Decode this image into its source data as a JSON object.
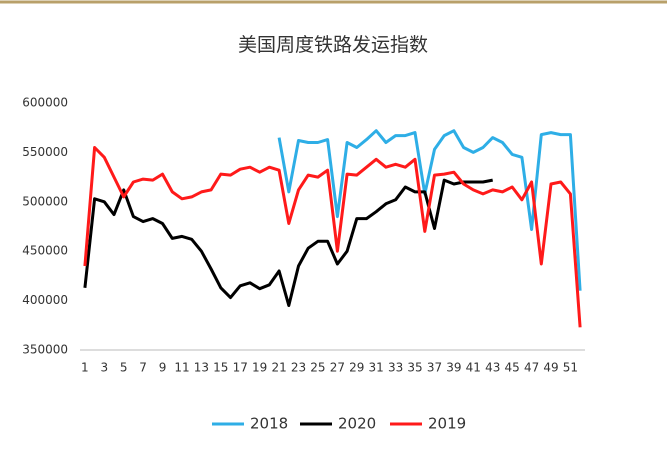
{
  "chart_data": {
    "type": "line",
    "title": "美国周度铁路发运指数",
    "categories": [
      1,
      null,
      3,
      null,
      5,
      null,
      7,
      null,
      9,
      null,
      11,
      null,
      13,
      null,
      15,
      null,
      17,
      null,
      19,
      null,
      21,
      null,
      23,
      null,
      25,
      null,
      27,
      null,
      29,
      null,
      31,
      null,
      33,
      null,
      35,
      null,
      37,
      null,
      39,
      null,
      41,
      null,
      43,
      null,
      45,
      null,
      47,
      null,
      49,
      null,
      51,
      null
    ],
    "ylim": [
      350000,
      600000
    ],
    "yticks": [
      350000,
      400000,
      450000,
      500000,
      550000,
      600000
    ],
    "grid": false,
    "legend": "bottom",
    "series": [
      {
        "name": "2018",
        "color": "#2eaee6",
        "values": [
          null,
          null,
          null,
          null,
          null,
          null,
          null,
          null,
          null,
          null,
          null,
          null,
          null,
          null,
          null,
          null,
          null,
          null,
          null,
          null,
          565000,
          510000,
          562000,
          560000,
          560000,
          563000,
          485000,
          560000,
          555000,
          563000,
          572000,
          560000,
          567000,
          567000,
          570000,
          508000,
          553000,
          567000,
          572000,
          555000,
          550000,
          555000,
          565000,
          560000,
          548000,
          545000,
          472000,
          568000,
          570000,
          568000,
          568000,
          410000
        ]
      },
      {
        "name": "2020",
        "color": "#000000",
        "values": [
          413000,
          503000,
          500000,
          487000,
          512000,
          485000,
          480000,
          483000,
          478000,
          463000,
          465000,
          462000,
          450000,
          432000,
          413000,
          403000,
          415000,
          418000,
          412000,
          416000,
          430000,
          395000,
          435000,
          453000,
          460000,
          460000,
          437000,
          450000,
          483000,
          483000,
          490000,
          498000,
          502000,
          515000,
          510000,
          510000,
          473000,
          522000,
          518000,
          520000,
          520000,
          520000,
          522000,
          null,
          null,
          null,
          null,
          null,
          null,
          null,
          null,
          null
        ]
      },
      {
        "name": "2019",
        "color": "#ff1a1a",
        "values": [
          435000,
          555000,
          545000,
          525000,
          505000,
          520000,
          523000,
          522000,
          528000,
          510000,
          503000,
          505000,
          510000,
          512000,
          528000,
          527000,
          533000,
          535000,
          530000,
          535000,
          532000,
          478000,
          512000,
          527000,
          525000,
          532000,
          450000,
          528000,
          527000,
          535000,
          543000,
          535000,
          538000,
          535000,
          543000,
          470000,
          527000,
          528000,
          530000,
          518000,
          512000,
          508000,
          512000,
          510000,
          515000,
          502000,
          520000,
          437000,
          518000,
          520000,
          508000,
          373000
        ]
      }
    ]
  }
}
